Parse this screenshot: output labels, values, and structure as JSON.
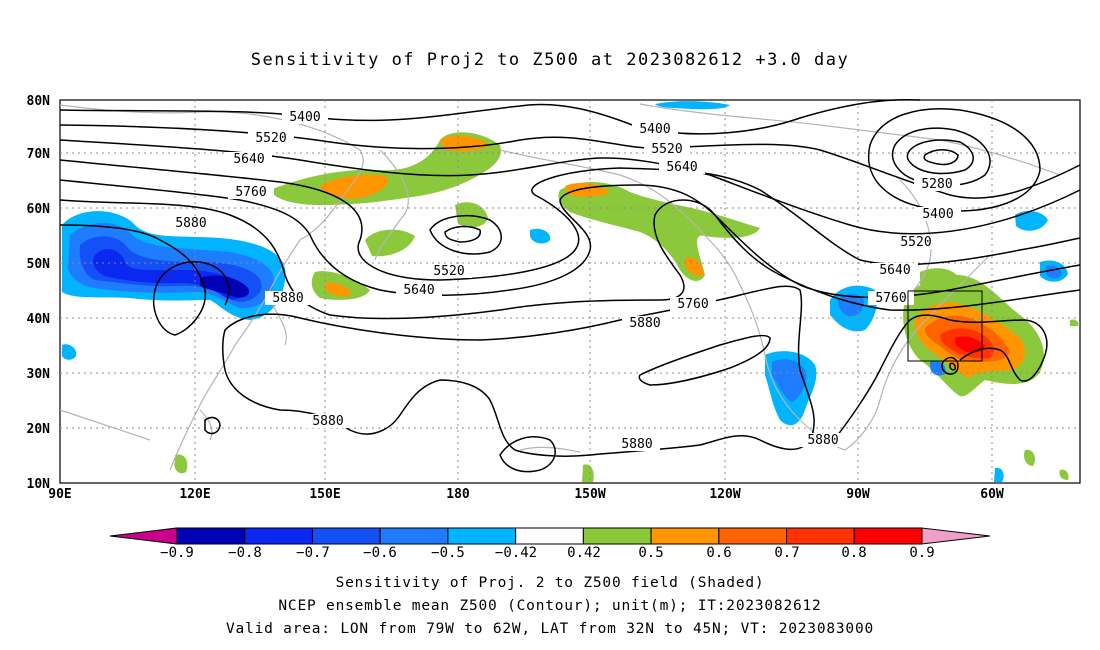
{
  "title": "Sensitivity of Proj2 to Z500 at 2023082612 +3.0 day",
  "map": {
    "lon_labels": [
      "90E",
      "120E",
      "150E",
      "180",
      "150W",
      "120W",
      "90W",
      "60W"
    ],
    "lat_labels": [
      "80N",
      "70N",
      "60N",
      "50N",
      "40N",
      "30N",
      "20N",
      "10N"
    ],
    "contour_labels": [
      "5400",
      "5520",
      "5640",
      "5760",
      "5880",
      "5400",
      "5520",
      "5640",
      "5760",
      "5880",
      "5520",
      "5640",
      "5280",
      "5400",
      "5520",
      "5640",
      "5760",
      "5880",
      "5880",
      "5880"
    ],
    "valid_box": {
      "lon_from": "79W",
      "lon_to": "62W",
      "lat_from": "32N",
      "lat_to": "45N"
    },
    "colors": {
      "neg_max": "#c8008c",
      "pos_max": "#f0a0c8",
      "coast": "#b4b4b4",
      "contour": "#000000",
      "grid": "#8c8c8c"
    }
  },
  "colorbar": {
    "labels": [
      "−0.9",
      "−0.8",
      "−0.7",
      "−0.6",
      "−0.5",
      "−0.42",
      "0.42",
      "0.5",
      "0.6",
      "0.7",
      "0.8",
      "0.9"
    ],
    "colors": [
      "#0000b4",
      "#0a28f0",
      "#1450f5",
      "#1e7dff",
      "#00b4ff",
      "#ffffff",
      "#8cc83c",
      "#ff9600",
      "#ff6400",
      "#ff3200",
      "#ff0000"
    ]
  },
  "caption": {
    "line1": "Sensitivity of Proj. 2 to Z500 field (Shaded)",
    "line2": "NCEP ensemble mean Z500 (Contour); unit(m); IT:2023082612",
    "line3": "Valid area: LON from 79W to 62W, LAT from 32N to 45N; VT: 2023083000"
  }
}
